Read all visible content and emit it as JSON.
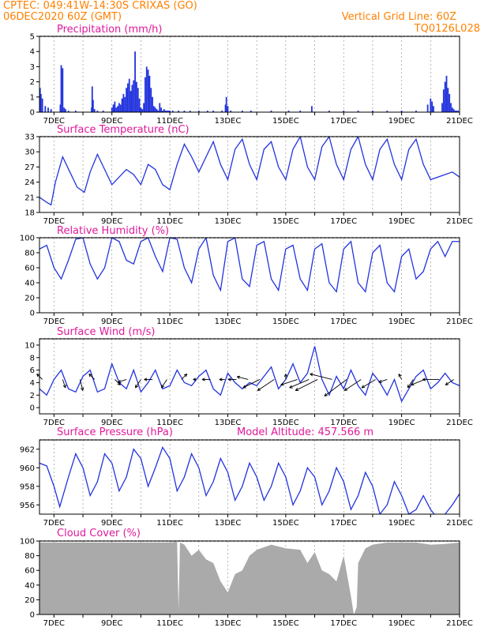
{
  "header": {
    "line1": "CPTEC:   049:41W-14:30S   CRIXAS (GO)",
    "line2": "06DEC2020 60Z (GMT)",
    "grid_note": "Vertical Grid Line: 60Z",
    "run_id": "TQ0126L028"
  },
  "colors": {
    "header": "#ff8000",
    "title": "#e0199b",
    "series": "#2233dd",
    "grid": "#888888",
    "cloud": "#aaaaaa"
  },
  "x_axis": {
    "labels": [
      "7DEC",
      "9DEC",
      "11DEC",
      "13DEC",
      "15DEC",
      "17DEC",
      "19DEC",
      "21DEC"
    ],
    "label_days": [
      7,
      9,
      11,
      13,
      15,
      17,
      19,
      21
    ],
    "grid_days": [
      7,
      8,
      9,
      10,
      11,
      12,
      13,
      14,
      15,
      16,
      17,
      18,
      19,
      20,
      21
    ],
    "start_day": 6.5,
    "end_day": 21.0
  },
  "chart_data": [
    {
      "type": "bar",
      "title": "Precipitation (mm/h)",
      "ylim": [
        0,
        5
      ],
      "yticks": [
        0,
        1,
        2,
        3,
        4,
        5
      ],
      "x": [
        6.52,
        6.55,
        6.6,
        6.7,
        6.8,
        6.9,
        7.22,
        7.25,
        7.3,
        7.35,
        7.4,
        7.5,
        7.75,
        8.3,
        8.32,
        8.35,
        8.4,
        8.5,
        8.7,
        9.0,
        9.05,
        9.1,
        9.15,
        9.2,
        9.25,
        9.3,
        9.35,
        9.4,
        9.45,
        9.5,
        9.55,
        9.6,
        9.65,
        9.7,
        9.75,
        9.8,
        9.85,
        9.9,
        9.95,
        10.0,
        10.05,
        10.1,
        10.15,
        10.2,
        10.25,
        10.3,
        10.35,
        10.4,
        10.45,
        10.5,
        10.55,
        10.6,
        10.65,
        10.7,
        10.75,
        10.8,
        10.85,
        10.9,
        10.95,
        11.0,
        11.1,
        11.3,
        11.5,
        11.7,
        12.0,
        12.3,
        12.5,
        12.8,
        12.92,
        12.95,
        13.0,
        13.1,
        13.5,
        13.8,
        14.5,
        15.1,
        15.5,
        15.9,
        16.5,
        17.0,
        17.5,
        18.0,
        18.5,
        19.0,
        19.5,
        19.9,
        20.0,
        20.05,
        20.1,
        20.4,
        20.45,
        20.5,
        20.55,
        20.6,
        20.65,
        20.7,
        20.75,
        20.8,
        20.85,
        20.9,
        20.95
      ],
      "values": [
        1.6,
        1.2,
        0.9,
        0.4,
        0.3,
        0.2,
        0.5,
        3.1,
        2.9,
        0.3,
        0.2,
        0.1,
        0.1,
        0.3,
        1.7,
        0.8,
        0.2,
        0.1,
        0.1,
        0.3,
        0.5,
        0.7,
        0.3,
        0.4,
        0.6,
        0.5,
        0.9,
        1.2,
        1.0,
        1.6,
        1.9,
        2.2,
        1.4,
        1.8,
        2.1,
        4.0,
        2.0,
        1.6,
        0.9,
        0.3,
        0.2,
        0.6,
        2.3,
        3.0,
        2.8,
        2.4,
        1.6,
        1.0,
        0.4,
        0.3,
        0.2,
        0.1,
        0.6,
        0.3,
        0.1,
        0.2,
        0.1,
        0.1,
        0.1,
        0.1,
        0.1,
        0.1,
        0.1,
        0.1,
        0.1,
        0.1,
        0.1,
        0.1,
        0.5,
        1.0,
        0.4,
        0.1,
        0.1,
        0.1,
        0.1,
        0.1,
        0.1,
        0.4,
        0.1,
        0.1,
        0.1,
        0.1,
        0.1,
        0.1,
        0.1,
        0.5,
        0.9,
        0.7,
        0.4,
        0.6,
        1.5,
        2.0,
        2.4,
        1.6,
        1.2,
        0.6,
        0.3,
        0.2,
        0.1,
        0.1,
        0.1
      ]
    },
    {
      "type": "line",
      "title": "Surface Temperature (nC)",
      "ylim": [
        18,
        33
      ],
      "yticks": [
        18,
        21,
        24,
        27,
        30,
        33
      ],
      "x": [
        6.5,
        6.75,
        6.9,
        7.05,
        7.3,
        7.55,
        7.8,
        8.05,
        8.25,
        8.5,
        8.75,
        9.0,
        9.25,
        9.5,
        9.75,
        10.0,
        10.25,
        10.5,
        10.75,
        11.0,
        11.25,
        11.5,
        11.75,
        12.0,
        12.25,
        12.5,
        12.75,
        13.0,
        13.25,
        13.5,
        13.75,
        14.0,
        14.25,
        14.5,
        14.75,
        15.0,
        15.25,
        15.5,
        15.75,
        16.0,
        16.25,
        16.5,
        16.75,
        17.0,
        17.25,
        17.5,
        17.75,
        18.0,
        18.25,
        18.5,
        18.75,
        19.0,
        19.25,
        19.5,
        19.75,
        20.0,
        20.25,
        20.5,
        20.75,
        21.0
      ],
      "values": [
        21,
        20,
        19.5,
        24,
        29,
        26,
        23,
        22,
        26,
        29.5,
        26.5,
        23.5,
        25,
        26.5,
        25.5,
        23.5,
        27.5,
        26.5,
        23.5,
        22.5,
        27.5,
        31.5,
        29,
        26,
        29,
        32,
        27.5,
        24.5,
        30.5,
        32.5,
        27.5,
        24.5,
        30.5,
        32,
        27,
        24.5,
        30.5,
        33,
        27,
        24.5,
        31,
        33,
        27.5,
        24.5,
        30.5,
        33,
        27.5,
        24.5,
        30.5,
        32.5,
        27.5,
        24.5,
        30.5,
        32.5,
        27.5,
        24.5,
        25,
        25.5,
        26,
        25
      ]
    },
    {
      "type": "line",
      "title": "Relative Humidity (%)",
      "ylim": [
        0,
        100
      ],
      "yticks": [
        0,
        20,
        40,
        60,
        80,
        100
      ],
      "x": [
        6.5,
        6.75,
        7.0,
        7.25,
        7.5,
        7.75,
        8.0,
        8.25,
        8.5,
        8.75,
        9.0,
        9.25,
        9.5,
        9.75,
        10.0,
        10.25,
        10.5,
        10.75,
        11.0,
        11.25,
        11.5,
        11.75,
        12.0,
        12.25,
        12.5,
        12.75,
        13.0,
        13.25,
        13.5,
        13.75,
        14.0,
        14.25,
        14.5,
        14.75,
        15.0,
        15.25,
        15.5,
        15.75,
        16.0,
        16.25,
        16.5,
        16.75,
        17.0,
        17.25,
        17.5,
        17.75,
        18.0,
        18.25,
        18.5,
        18.75,
        19.0,
        19.25,
        19.5,
        19.75,
        20.0,
        20.25,
        20.5,
        20.75,
        21.0
      ],
      "values": [
        85,
        90,
        60,
        45,
        70,
        98,
        100,
        65,
        45,
        60,
        100,
        95,
        70,
        65,
        95,
        100,
        75,
        55,
        100,
        98,
        60,
        40,
        85,
        100,
        50,
        30,
        95,
        100,
        45,
        35,
        90,
        95,
        45,
        30,
        85,
        90,
        45,
        30,
        85,
        92,
        40,
        28,
        85,
        95,
        40,
        28,
        80,
        90,
        40,
        28,
        75,
        85,
        45,
        55,
        85,
        95,
        75,
        95,
        95
      ]
    },
    {
      "type": "line",
      "title": "Surface Wind (m/s)",
      "ylim": [
        -1,
        11
      ],
      "yticks": [
        0,
        2,
        4,
        6,
        8,
        10
      ],
      "x": [
        6.5,
        6.75,
        7.0,
        7.25,
        7.5,
        7.75,
        8.0,
        8.25,
        8.5,
        8.75,
        9.0,
        9.25,
        9.5,
        9.75,
        10.0,
        10.25,
        10.5,
        10.75,
        11.0,
        11.25,
        11.5,
        11.75,
        12.0,
        12.25,
        12.5,
        12.75,
        13.0,
        13.25,
        13.5,
        13.75,
        14.0,
        14.25,
        14.5,
        14.75,
        15.0,
        15.25,
        15.5,
        15.75,
        16.0,
        16.25,
        16.5,
        16.75,
        17.0,
        17.25,
        17.5,
        17.75,
        18.0,
        18.25,
        18.5,
        18.75,
        19.0,
        19.25,
        19.5,
        19.75,
        20.0,
        20.25,
        20.5,
        20.75,
        21.0
      ],
      "values": [
        3,
        2,
        4.5,
        6,
        3,
        2.5,
        5,
        6,
        2.5,
        3,
        7,
        4,
        3,
        6,
        2.5,
        4,
        6,
        3,
        3.5,
        6,
        4,
        3.5,
        5,
        6,
        3,
        2,
        5.5,
        4,
        3,
        4,
        3.5,
        5,
        6.5,
        3,
        4.5,
        7,
        4,
        5.5,
        9.8,
        4.5,
        2,
        5,
        3,
        6,
        3.5,
        2,
        5.5,
        4,
        2,
        4.5,
        1,
        3,
        5,
        6,
        3,
        4,
        5.5,
        4,
        3.5
      ],
      "arrows_x": [
        6.6,
        7.3,
        7.9,
        8.4,
        9.1,
        9.5,
        10.0,
        10.4,
        10.9,
        11.4,
        11.9,
        12.4,
        12.9,
        13.3,
        13.7,
        14.1,
        14.6,
        15.0,
        15.4,
        15.8,
        16.1,
        16.6,
        17.1,
        17.6,
        18.1,
        18.5,
        19.0,
        19.4,
        19.8,
        20.3,
        20.8
      ],
      "arrows_u": [
        -1,
        0.5,
        0.5,
        -1,
        1,
        -1.5,
        -1,
        -1.5,
        -1,
        1,
        -0.5,
        -1.5,
        -1,
        -1.5,
        -2,
        -3,
        -3,
        0,
        -3,
        -3.5,
        -4,
        -4,
        -4,
        -3,
        -2.5,
        -1.5,
        -0.5,
        -1,
        -2.5,
        -3,
        -1.5
      ],
      "arrows_v": [
        1,
        -1.5,
        -2,
        1,
        -1,
        -0.5,
        -1.5,
        0,
        -1.5,
        1,
        0,
        0,
        0,
        0,
        0.5,
        -1.5,
        -2,
        1,
        -1,
        -1.5,
        -2,
        1,
        -3,
        -2,
        -1.5,
        -0.5,
        1,
        -1.5,
        -1,
        0,
        -1
      ]
    },
    {
      "type": "line",
      "title": "Surface Pressure (hPa)",
      "subtitle": "Model Altitude: 457.566 m",
      "ylim": [
        955,
        963
      ],
      "yticks": [
        956,
        958,
        960,
        962
      ],
      "x": [
        6.5,
        6.75,
        7.0,
        7.2,
        7.5,
        7.75,
        8.0,
        8.25,
        8.5,
        8.75,
        9.0,
        9.25,
        9.5,
        9.75,
        10.0,
        10.25,
        10.5,
        10.75,
        11.0,
        11.25,
        11.5,
        11.75,
        12.0,
        12.25,
        12.5,
        12.75,
        13.0,
        13.25,
        13.5,
        13.75,
        14.0,
        14.25,
        14.5,
        14.75,
        15.0,
        15.25,
        15.5,
        15.75,
        16.0,
        16.25,
        16.5,
        16.75,
        17.0,
        17.25,
        17.5,
        17.75,
        18.0,
        18.25,
        18.5,
        18.75,
        19.0,
        19.25,
        19.5,
        19.75,
        20.0,
        20.25,
        20.5,
        20.75,
        21.0
      ],
      "values": [
        960.5,
        960.2,
        958,
        955.8,
        959,
        961.5,
        960,
        957,
        958.5,
        961.5,
        960.5,
        957.5,
        959,
        962,
        961,
        958,
        960,
        962.2,
        961,
        957.5,
        959,
        961.5,
        960,
        957,
        958.5,
        961,
        959.5,
        956.5,
        958,
        960.5,
        959,
        956.5,
        958,
        960.5,
        959,
        956,
        957.5,
        960,
        959,
        956,
        957.5,
        960,
        958.5,
        955.5,
        957,
        959.5,
        958,
        955,
        956,
        958.5,
        957,
        955,
        955.5,
        957,
        955.5,
        954.5,
        955,
        956,
        957.2
      ]
    },
    {
      "type": "area",
      "title": "Cloud Cover (%)",
      "ylim": [
        0,
        100
      ],
      "yticks": [
        0,
        20,
        40,
        60,
        80,
        100
      ],
      "x": [
        6.5,
        7.0,
        7.5,
        8.0,
        8.5,
        9.0,
        9.5,
        10.0,
        10.5,
        11.0,
        11.25,
        11.3,
        11.35,
        11.5,
        11.75,
        12.0,
        12.25,
        12.5,
        12.75,
        13.0,
        13.25,
        13.5,
        13.75,
        14.0,
        14.5,
        15.0,
        15.5,
        15.75,
        16.0,
        16.25,
        16.5,
        16.75,
        17.0,
        17.25,
        17.35,
        17.45,
        17.5,
        17.75,
        18.0,
        18.5,
        19.0,
        19.5,
        20.0,
        20.5,
        21.0
      ],
      "values": [
        98,
        98,
        98,
        98,
        98,
        98,
        98,
        98,
        98,
        98,
        99,
        5,
        98,
        95,
        80,
        88,
        75,
        70,
        45,
        30,
        55,
        60,
        80,
        88,
        95,
        90,
        88,
        70,
        85,
        60,
        55,
        45,
        80,
        25,
        0,
        10,
        70,
        90,
        95,
        98,
        98,
        98,
        95,
        96,
        98
      ]
    }
  ]
}
